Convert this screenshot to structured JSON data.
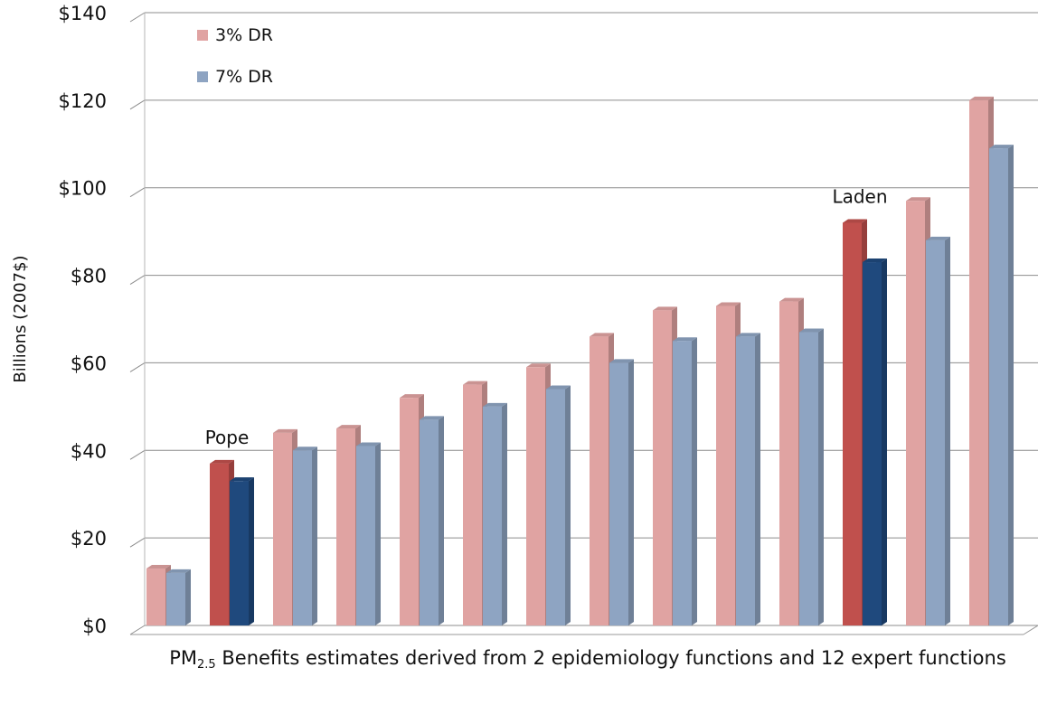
{
  "chart_data": {
    "type": "bar",
    "ylabel": "Billions (2007$)",
    "ylim": [
      0,
      140
    ],
    "yticks": [
      0,
      20,
      40,
      60,
      80,
      100,
      120,
      140
    ],
    "ytick_labels": [
      "$0",
      "$20",
      "$40",
      "$60",
      "$80",
      "$100",
      "$120",
      "$140"
    ],
    "grid": true,
    "legend_position": "top-left",
    "categories": [
      "",
      "",
      "",
      "",
      "",
      "",
      "",
      "",
      "",
      "",
      "",
      "",
      "",
      ""
    ],
    "series": [
      {
        "name": "3% DR",
        "values": [
          13,
          37,
          44,
          45,
          52,
          55,
          59,
          66,
          72,
          73,
          74,
          92,
          97,
          120
        ]
      },
      {
        "name": "7% DR",
        "values": [
          12,
          33,
          40,
          41,
          47,
          50,
          54,
          60,
          65,
          66,
          67,
          83,
          88,
          109
        ]
      }
    ],
    "highlight_indices": [
      1,
      11
    ],
    "annotations": [
      {
        "index": 1,
        "text": "Pope"
      },
      {
        "index": 11,
        "text": "Laden"
      }
    ],
    "xlabel_parts": {
      "pre": "PM",
      "sub": "2.5",
      "post": " Benefits estimates derived from 2 epidemiology functions and 12 expert functions"
    },
    "colors": {
      "s1_light": "#e0a3a2",
      "s1_dark": "#c0504d",
      "s2_light": "#8ea4c2",
      "s2_dark": "#1f497d",
      "grid": "#8c8c8c"
    }
  }
}
